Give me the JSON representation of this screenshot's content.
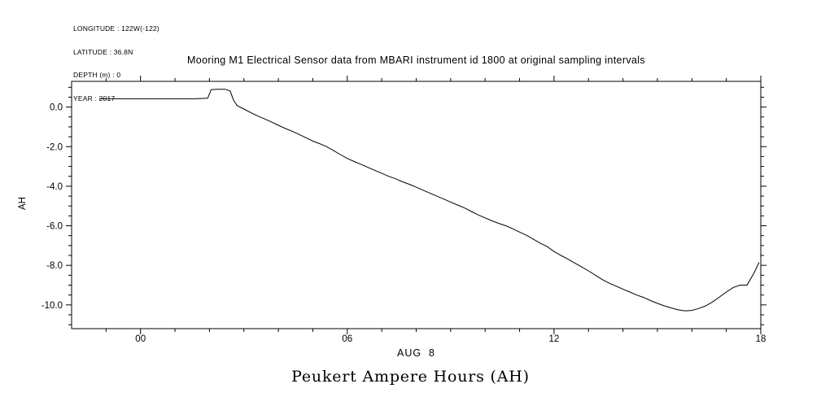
{
  "metadata": {
    "lines": [
      "LONGITUDE : 122W(-122)",
      "LATITUDE : 36.8N",
      "DEPTH (m) : 0",
      "YEAR : 2017"
    ]
  },
  "title": "Mooring M1 Electrical Sensor data from MBARI instrument id 1800 at original sampling intervals",
  "bottom_title": "Peukert Ampere Hours (AH)",
  "chart_data": {
    "type": "line",
    "title": "Mooring M1 Electrical Sensor data from MBARI instrument id 1800 at original sampling intervals",
    "xlabel": "AUG  8",
    "ylabel": "AH",
    "xlim": [
      -2,
      18
    ],
    "ylim": [
      -11.2,
      1.3
    ],
    "x_major_ticks": [
      0,
      6,
      12,
      18
    ],
    "x_tick_labels": [
      "00",
      "06",
      "12",
      "18"
    ],
    "x_minor_step": 1,
    "y_major_ticks": [
      0,
      -2,
      -4,
      -6,
      -8,
      -10
    ],
    "y_tick_labels": [
      "0.0",
      "-2.0",
      "-4.0",
      "-6.0",
      "-8.0",
      "-10.0"
    ],
    "y_minor_step": 0.5,
    "grid": false,
    "legend": "none",
    "line_color": "#000000",
    "background_color": "#ffffff",
    "series": [
      {
        "name": "Peukert Ampere Hours (AH)",
        "points": [
          [
            -1.2,
            0.42
          ],
          [
            -0.8,
            0.42
          ],
          [
            -0.4,
            0.42
          ],
          [
            0,
            0.42
          ],
          [
            0.4,
            0.42
          ],
          [
            0.8,
            0.42
          ],
          [
            1.2,
            0.42
          ],
          [
            1.6,
            0.42
          ],
          [
            1.95,
            0.45
          ],
          [
            2.05,
            0.88
          ],
          [
            2.2,
            0.9
          ],
          [
            2.45,
            0.9
          ],
          [
            2.6,
            0.82
          ],
          [
            2.7,
            0.35
          ],
          [
            2.8,
            0.08
          ],
          [
            3,
            -0.1
          ],
          [
            3.2,
            -0.28
          ],
          [
            3.4,
            -0.45
          ],
          [
            3.6,
            -0.6
          ],
          [
            3.8,
            -0.75
          ],
          [
            4,
            -0.92
          ],
          [
            4.2,
            -1.08
          ],
          [
            4.4,
            -1.22
          ],
          [
            4.6,
            -1.38
          ],
          [
            4.8,
            -1.55
          ],
          [
            5,
            -1.72
          ],
          [
            5.2,
            -1.85
          ],
          [
            5.4,
            -2.0
          ],
          [
            5.6,
            -2.2
          ],
          [
            5.8,
            -2.4
          ],
          [
            6,
            -2.6
          ],
          [
            6.2,
            -2.75
          ],
          [
            6.4,
            -2.9
          ],
          [
            6.6,
            -3.05
          ],
          [
            6.8,
            -3.2
          ],
          [
            7,
            -3.35
          ],
          [
            7.2,
            -3.5
          ],
          [
            7.4,
            -3.62
          ],
          [
            7.6,
            -3.78
          ],
          [
            7.8,
            -3.9
          ],
          [
            8,
            -4.05
          ],
          [
            8.2,
            -4.2
          ],
          [
            8.4,
            -4.35
          ],
          [
            8.6,
            -4.5
          ],
          [
            8.8,
            -4.65
          ],
          [
            9,
            -4.8
          ],
          [
            9.2,
            -4.95
          ],
          [
            9.4,
            -5.1
          ],
          [
            9.6,
            -5.28
          ],
          [
            9.8,
            -5.45
          ],
          [
            10,
            -5.6
          ],
          [
            10.2,
            -5.75
          ],
          [
            10.4,
            -5.88
          ],
          [
            10.6,
            -6.0
          ],
          [
            10.8,
            -6.15
          ],
          [
            11,
            -6.32
          ],
          [
            11.2,
            -6.48
          ],
          [
            11.4,
            -6.68
          ],
          [
            11.6,
            -6.88
          ],
          [
            11.8,
            -7.05
          ],
          [
            12,
            -7.3
          ],
          [
            12.2,
            -7.5
          ],
          [
            12.4,
            -7.68
          ],
          [
            12.6,
            -7.88
          ],
          [
            12.8,
            -8.08
          ],
          [
            13,
            -8.28
          ],
          [
            13.2,
            -8.5
          ],
          [
            13.4,
            -8.72
          ],
          [
            13.6,
            -8.9
          ],
          [
            13.8,
            -9.05
          ],
          [
            14,
            -9.2
          ],
          [
            14.2,
            -9.35
          ],
          [
            14.4,
            -9.5
          ],
          [
            14.6,
            -9.62
          ],
          [
            14.8,
            -9.78
          ],
          [
            15,
            -9.92
          ],
          [
            15.2,
            -10.05
          ],
          [
            15.4,
            -10.15
          ],
          [
            15.6,
            -10.25
          ],
          [
            15.8,
            -10.3
          ],
          [
            16,
            -10.28
          ],
          [
            16.2,
            -10.18
          ],
          [
            16.4,
            -10.05
          ],
          [
            16.6,
            -9.85
          ],
          [
            16.8,
            -9.6
          ],
          [
            17,
            -9.35
          ],
          [
            17.2,
            -9.12
          ],
          [
            17.4,
            -9.0
          ],
          [
            17.6,
            -9.0
          ],
          [
            17.8,
            -8.4
          ],
          [
            17.95,
            -7.85
          ]
        ]
      }
    ]
  }
}
